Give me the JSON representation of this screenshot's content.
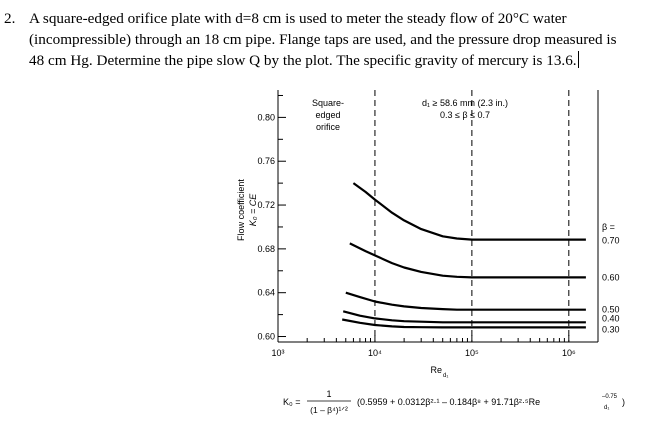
{
  "problem": {
    "number": "2.",
    "text": "A square-edged orifice plate with d=8 cm is used to meter the steady flow of 20°C water (incompressible) through an 18 cm pipe. Flange taps are used, and the pressure drop measured is 48 cm Hg. Determine the pipe slow Q by the plot. The specific gravity of mercury is 13.6."
  },
  "chart_data": {
    "type": "line",
    "ylabel_line1": "Flow coefficient",
    "ylabel_line2": "K₀ = CE",
    "xlabel": "Re",
    "xlabel_sub": "d₁",
    "x_scale": "log",
    "xlim": [
      1000,
      2000000
    ],
    "ylim": [
      0.595,
      0.825
    ],
    "y_ticks": [
      "0.80",
      "0.76",
      "0.72",
      "0.68",
      "0.64",
      "0.60"
    ],
    "x_ticks": [
      "10³",
      "10⁴",
      "10⁵",
      "10⁶"
    ],
    "annotation_left": [
      "Square-",
      "edged",
      "orifice"
    ],
    "annotation_right": [
      "d₁ ≥ 58.6 mm (2.3 in.)",
      "0.3 ≤ β ≤ 0.7"
    ],
    "beta_header": [
      "β ="
    ],
    "series": [
      {
        "name": "0.70",
        "x": [
          6000,
          8000,
          10000,
          15000,
          20000,
          30000,
          50000,
          70000,
          100000,
          1500000
        ],
        "y": [
          0.74,
          0.732,
          0.725,
          0.713,
          0.706,
          0.698,
          0.6915,
          0.6895,
          0.6885,
          0.6885
        ]
      },
      {
        "name": "0.60",
        "x": [
          5500,
          8000,
          10000,
          15000,
          20000,
          30000,
          50000,
          70000,
          100000,
          1500000
        ],
        "y": [
          0.685,
          0.678,
          0.674,
          0.667,
          0.663,
          0.659,
          0.6555,
          0.6545,
          0.654,
          0.654
        ]
      },
      {
        "name": "0.50",
        "x": [
          5000,
          7000,
          10000,
          15000,
          20000,
          30000,
          50000,
          70000,
          100000,
          1500000
        ],
        "y": [
          0.64,
          0.636,
          0.632,
          0.629,
          0.6275,
          0.626,
          0.625,
          0.6245,
          0.6245,
          0.6245
        ]
      },
      {
        "name": "0.40",
        "x": [
          4700,
          7000,
          10000,
          15000,
          20000,
          30000,
          50000,
          100000,
          1500000
        ],
        "y": [
          0.623,
          0.619,
          0.6165,
          0.6148,
          0.614,
          0.6135,
          0.613,
          0.613,
          0.613
        ]
      },
      {
        "name": "0.30",
        "x": [
          4600,
          7000,
          10000,
          15000,
          20000,
          30000,
          50000,
          100000,
          1500000
        ],
        "y": [
          0.6155,
          0.6125,
          0.6105,
          0.6092,
          0.6087,
          0.6085,
          0.6083,
          0.6083,
          0.6083
        ]
      }
    ],
    "dashed_verticals": [
      10000,
      100000,
      1000000
    ]
  },
  "formula": {
    "k0": "K₀ =",
    "num": "1",
    "den": "(1 – β⁴)¹ᐟ²",
    "rhs": "(0.5959 + 0.0312β²·¹ – 0.184β⁸ + 91.71β²·⁵Re",
    "rhs_sub": "d₁",
    "rhs_sup": "–0.75",
    "close": ")"
  }
}
